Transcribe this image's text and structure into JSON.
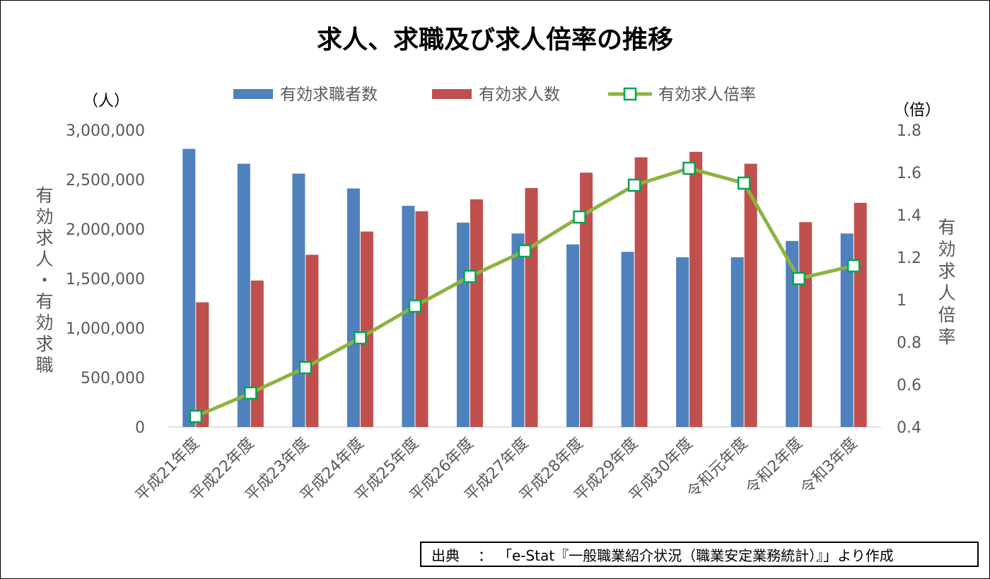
{
  "chart_data": {
    "type": "bar",
    "title": "求人、求職及び求人倍率の推移",
    "categories": [
      "平成21年度",
      "平成22年度",
      "平成23年度",
      "平成24年度",
      "平成25年度",
      "平成26年度",
      "平成27年度",
      "平成28年度",
      "平成29年度",
      "平成30年度",
      "令和元年度",
      "令和2年度",
      "令和3年度"
    ],
    "series": [
      {
        "name": "有効求職者数",
        "type": "bar",
        "axis": "left",
        "color": "#4f81bd",
        "values": [
          2810000,
          2660000,
          2560000,
          2410000,
          2235000,
          2065000,
          1955000,
          1845000,
          1770000,
          1715000,
          1715000,
          1880000,
          1955000
        ]
      },
      {
        "name": "有効求人数",
        "type": "bar",
        "axis": "left",
        "color": "#c0504d",
        "values": [
          1260000,
          1480000,
          1740000,
          1975000,
          2180000,
          2300000,
          2415000,
          2570000,
          2725000,
          2780000,
          2660000,
          2070000,
          2265000
        ]
      },
      {
        "name": "有効求人倍率",
        "type": "line",
        "axis": "right",
        "color": "#8db33f",
        "marker_color": "#00a650",
        "values": [
          0.45,
          0.56,
          0.68,
          0.82,
          0.97,
          1.11,
          1.23,
          1.39,
          1.54,
          1.62,
          1.55,
          1.1,
          1.16
        ]
      }
    ],
    "y_left": {
      "unit": "（人）",
      "label": "有効求人・有効求職",
      "range": [
        0,
        3000000
      ],
      "ticks": [
        "0",
        "500,000",
        "1,000,000",
        "1,500,000",
        "2,000,000",
        "2,500,000",
        "3,000,000"
      ],
      "tick_values": [
        0,
        500000,
        1000000,
        1500000,
        2000000,
        2500000,
        3000000
      ]
    },
    "y_right": {
      "unit": "（倍）",
      "label": "有効求人倍率",
      "range": [
        0.4,
        1.8
      ],
      "ticks": [
        "0.4",
        "0.6",
        "0.8",
        "1",
        "1.2",
        "1.4",
        "1.6",
        "1.8"
      ],
      "tick_values": [
        0.4,
        0.6,
        0.8,
        1.0,
        1.2,
        1.4,
        1.6,
        1.8
      ]
    },
    "legend": [
      "有効求職者数",
      "有効求人数",
      "有効求人倍率"
    ],
    "legend_position": "top-center",
    "grid": false
  },
  "source": {
    "label": "出典",
    "sep": "：",
    "text": "「e-Stat『一般職業紹介状況（職業安定業務統計）』」より作成"
  }
}
